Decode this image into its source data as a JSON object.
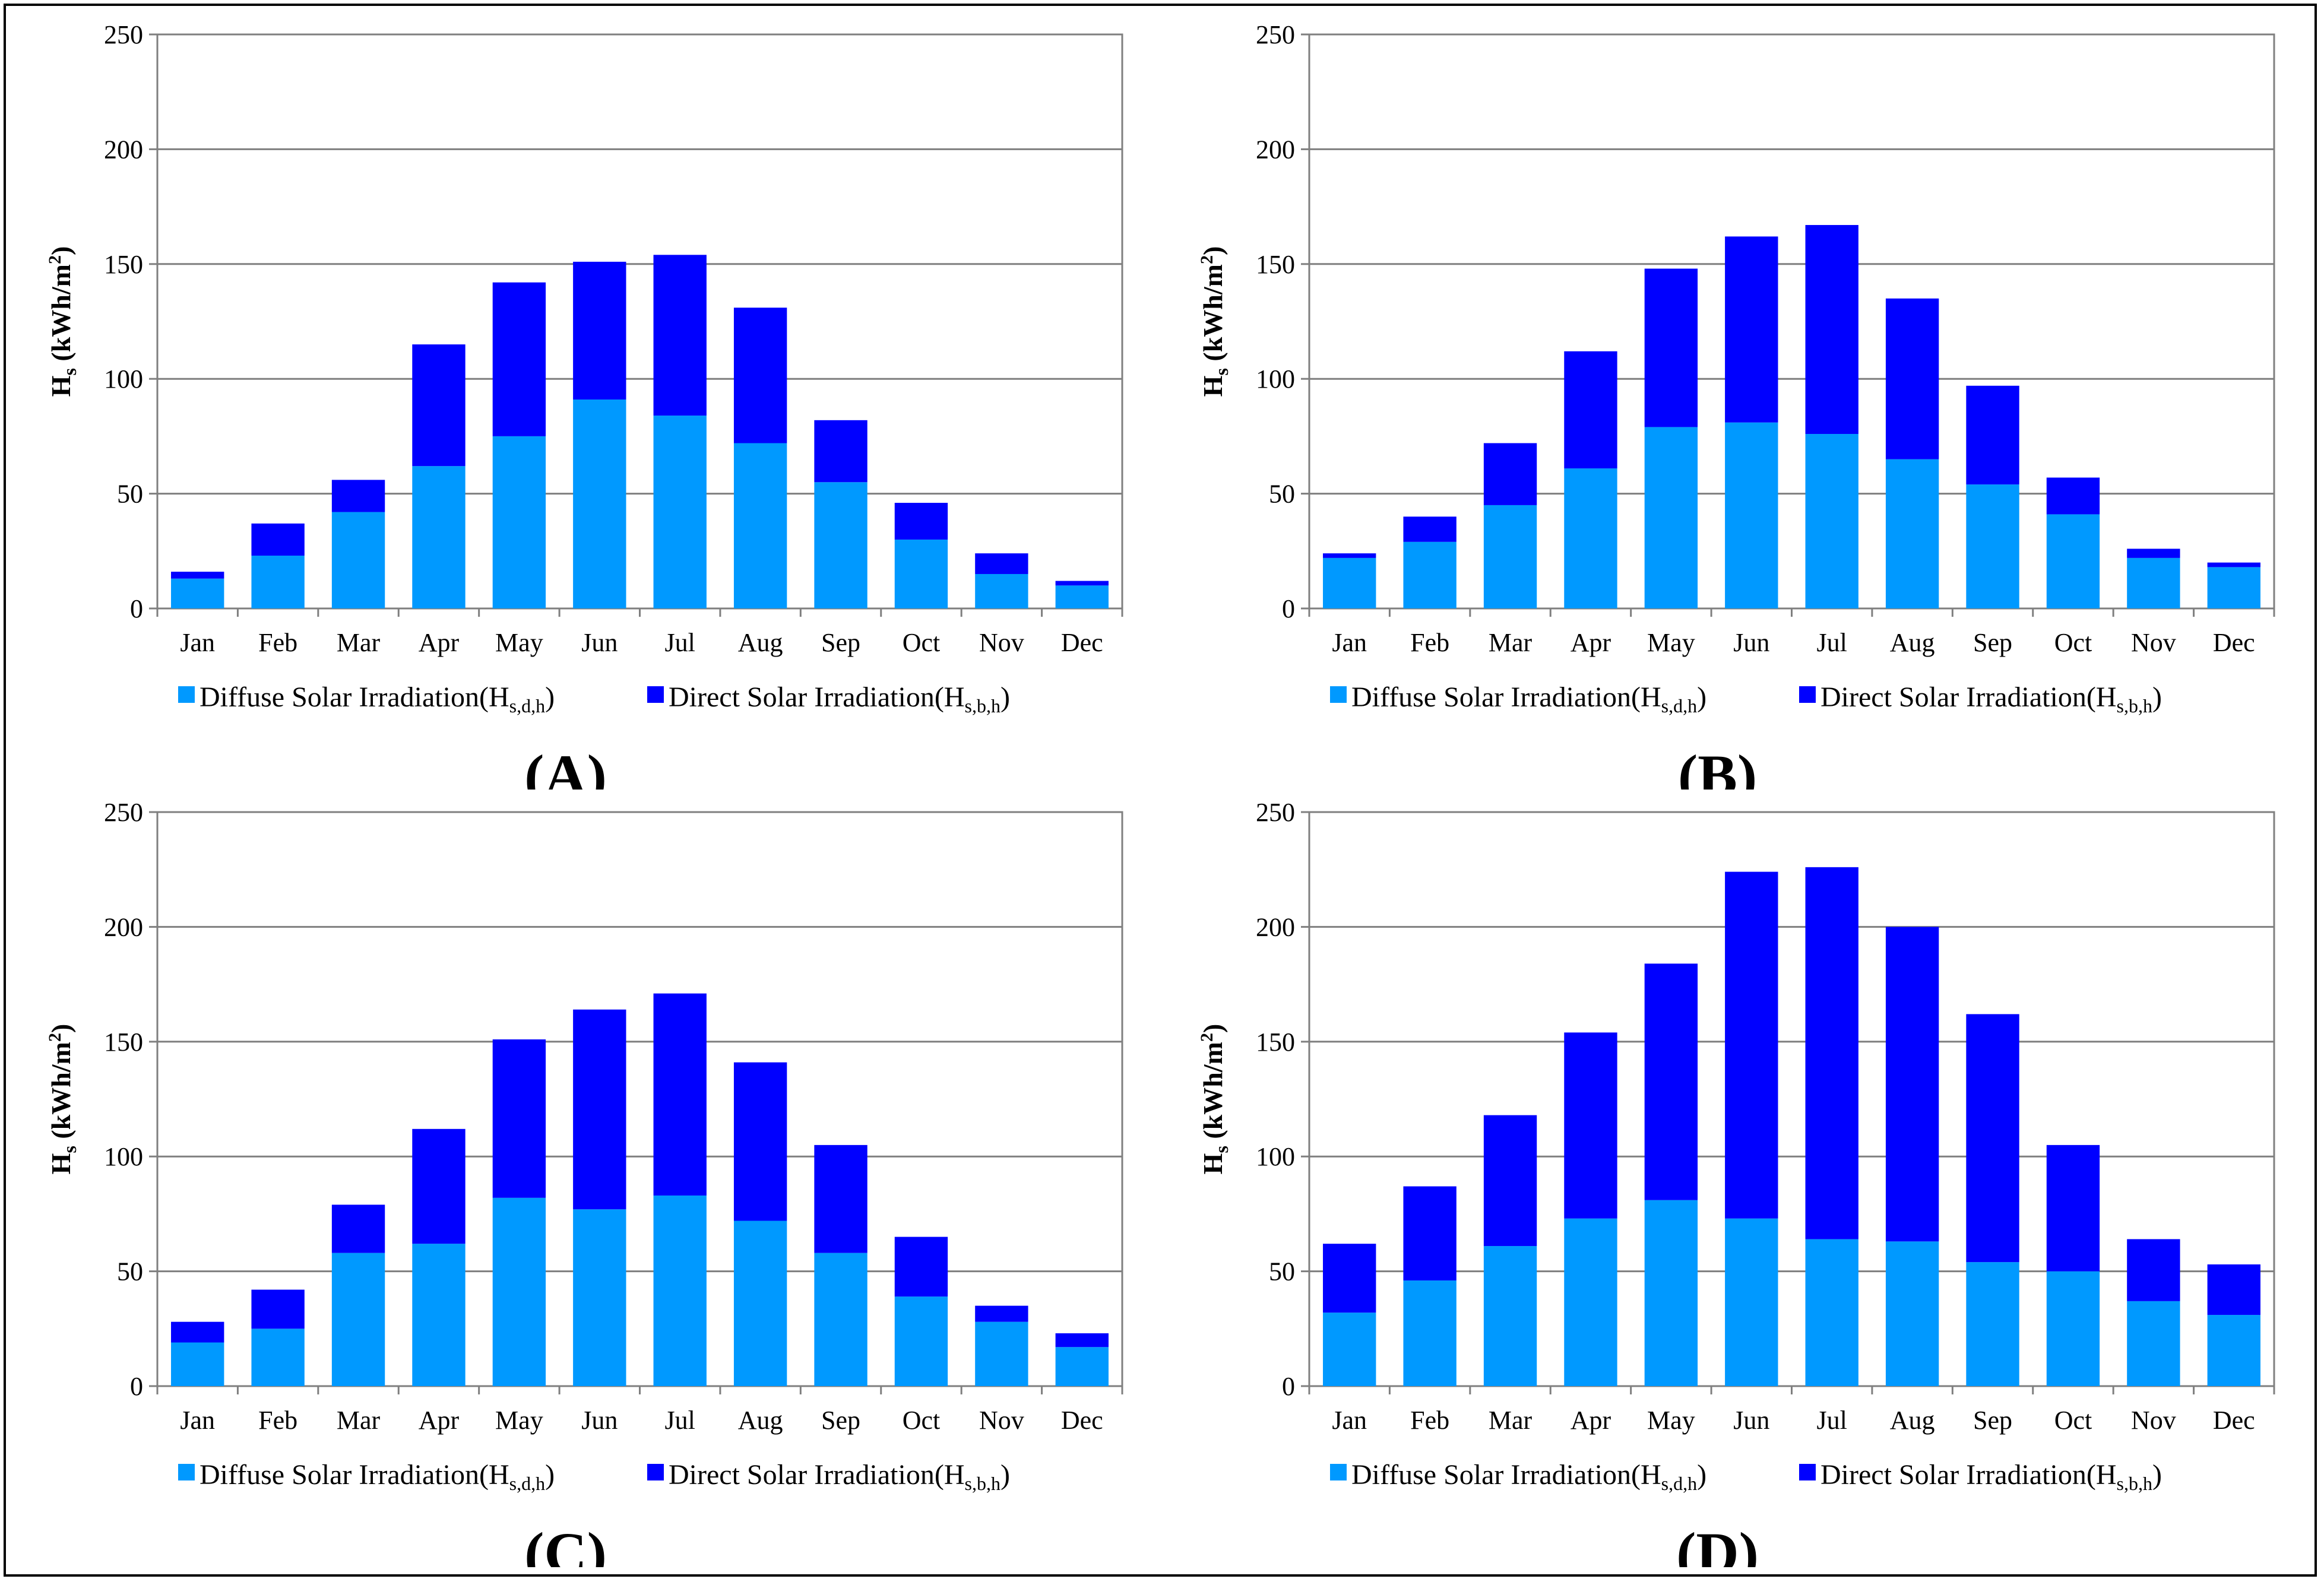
{
  "chart_data": [
    {
      "type": "bar",
      "stacked": true,
      "panel_label": "(A)",
      "ylabel": "Hs (kWh/m²)",
      "ylim": [
        0,
        250
      ],
      "yticks": [
        0,
        50,
        100,
        150,
        200,
        250
      ],
      "categories": [
        "Jan",
        "Feb",
        "Mar",
        "Apr",
        "May",
        "Jun",
        "Jul",
        "Aug",
        "Sep",
        "Oct",
        "Nov",
        "Dec"
      ],
      "series": [
        {
          "name": "Diffuse Solar Irradiation",
          "subscript": "s,d,h",
          "color": "#0099ff",
          "values": [
            13,
            23,
            42,
            62,
            75,
            91,
            84,
            72,
            55,
            30,
            15,
            10
          ]
        },
        {
          "name": "Direct Solar Irradiation",
          "subscript": "s,b,h",
          "color": "#0000ff",
          "values": [
            3,
            14,
            14,
            53,
            67,
            60,
            70,
            59,
            27,
            16,
            9,
            2
          ]
        }
      ],
      "legend_position": "bottom"
    },
    {
      "type": "bar",
      "stacked": true,
      "panel_label": "(B)",
      "ylabel": "Hs (kWh/m²)",
      "ylim": [
        0,
        250
      ],
      "yticks": [
        0,
        50,
        100,
        150,
        200,
        250
      ],
      "categories": [
        "Jan",
        "Feb",
        "Mar",
        "Apr",
        "May",
        "Jun",
        "Jul",
        "Aug",
        "Sep",
        "Oct",
        "Nov",
        "Dec"
      ],
      "series": [
        {
          "name": "Diffuse Solar Irradiation",
          "subscript": "s,d,h",
          "color": "#0099ff",
          "values": [
            22,
            29,
            45,
            61,
            79,
            81,
            76,
            65,
            54,
            41,
            22,
            18
          ]
        },
        {
          "name": "Direct Solar Irradiation",
          "subscript": "s,b,h",
          "color": "#0000ff",
          "values": [
            2,
            11,
            27,
            51,
            69,
            81,
            91,
            70,
            43,
            16,
            4,
            2
          ]
        }
      ],
      "legend_position": "bottom"
    },
    {
      "type": "bar",
      "stacked": true,
      "panel_label": "(C)",
      "ylabel": "Hs (kWh/m²)",
      "ylim": [
        0,
        250
      ],
      "yticks": [
        0,
        50,
        100,
        150,
        200,
        250
      ],
      "categories": [
        "Jan",
        "Feb",
        "Mar",
        "Apr",
        "May",
        "Jun",
        "Jul",
        "Aug",
        "Sep",
        "Oct",
        "Nov",
        "Dec"
      ],
      "series": [
        {
          "name": "Diffuse Solar Irradiation",
          "subscript": "s,d,h",
          "color": "#0099ff",
          "values": [
            19,
            25,
            58,
            62,
            82,
            77,
            83,
            72,
            58,
            39,
            28,
            17
          ]
        },
        {
          "name": "Direct Solar Irradiation",
          "subscript": "s,b,h",
          "color": "#0000ff",
          "values": [
            9,
            17,
            21,
            50,
            69,
            87,
            88,
            69,
            47,
            26,
            7,
            6
          ]
        }
      ],
      "legend_position": "bottom"
    },
    {
      "type": "bar",
      "stacked": true,
      "panel_label": "(D)",
      "ylabel": "Hs (kWh/m²)",
      "ylim": [
        0,
        250
      ],
      "yticks": [
        0,
        50,
        100,
        150,
        200,
        250
      ],
      "categories": [
        "Jan",
        "Feb",
        "Mar",
        "Apr",
        "May",
        "Jun",
        "Jul",
        "Aug",
        "Sep",
        "Oct",
        "Nov",
        "Dec"
      ],
      "series": [
        {
          "name": "Diffuse Solar Irradiation",
          "subscript": "s,d,h",
          "color": "#0099ff",
          "values": [
            32,
            46,
            61,
            73,
            81,
            73,
            64,
            63,
            54,
            50,
            37,
            31
          ]
        },
        {
          "name": "Direct Solar Irradiation",
          "subscript": "s,b,h",
          "color": "#0000ff",
          "values": [
            30,
            41,
            57,
            81,
            103,
            151,
            162,
            137,
            108,
            55,
            27,
            22
          ]
        }
      ],
      "legend_position": "bottom"
    }
  ]
}
